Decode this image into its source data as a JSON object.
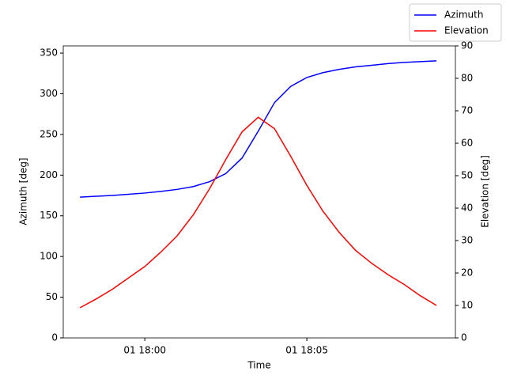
{
  "chart_data": {
    "type": "line",
    "x_label": "Time",
    "y_label": "Azimuth [deg]",
    "y2_label": "Elevation [deg]",
    "x": [
      "01 17:58:00",
      "01 17:58:30",
      "01 17:59:00",
      "01 17:59:30",
      "01 18:00:00",
      "01 18:00:30",
      "01 18:01:00",
      "01 18:01:30",
      "01 18:02:00",
      "01 18:02:30",
      "01 18:03:00",
      "01 18:03:30",
      "01 18:04:00",
      "01 18:04:30",
      "01 18:05:00",
      "01 18:05:30",
      "01 18:06:00",
      "01 18:06:30",
      "01 18:07:00",
      "01 18:07:30",
      "01 18:08:00",
      "01 18:08:30",
      "01 18:09:00"
    ],
    "xlim": [
      "01 17:57:29",
      "01 18:09:35"
    ],
    "xticks": [
      "01 18:00",
      "01 18:05"
    ],
    "ylim": [
      0,
      358.8
    ],
    "yticks": [
      0,
      50,
      100,
      150,
      200,
      250,
      300,
      350
    ],
    "y2lim": [
      0,
      90
    ],
    "y2ticks": [
      0,
      10,
      20,
      30,
      40,
      50,
      60,
      70,
      80,
      90
    ],
    "legend": "upper right",
    "series": [
      {
        "name": "Azimuth",
        "color": "#0000ff",
        "values": [
          173,
          174,
          175,
          176.5,
          178,
          180,
          182.5,
          186,
          192,
          202,
          221,
          254,
          289,
          309,
          320,
          326,
          330,
          333,
          335,
          337,
          338.5,
          339.5,
          340.5
        ]
      },
      {
        "name": "Elevation",
        "color": "#ff0000",
        "axis": "y2",
        "values": [
          9.3,
          12,
          15,
          18.5,
          22,
          26.5,
          31.5,
          38,
          46,
          55,
          63.5,
          68,
          64.5,
          56,
          47,
          39,
          32.5,
          27,
          23,
          19.5,
          16.5,
          13,
          10
        ]
      }
    ]
  }
}
